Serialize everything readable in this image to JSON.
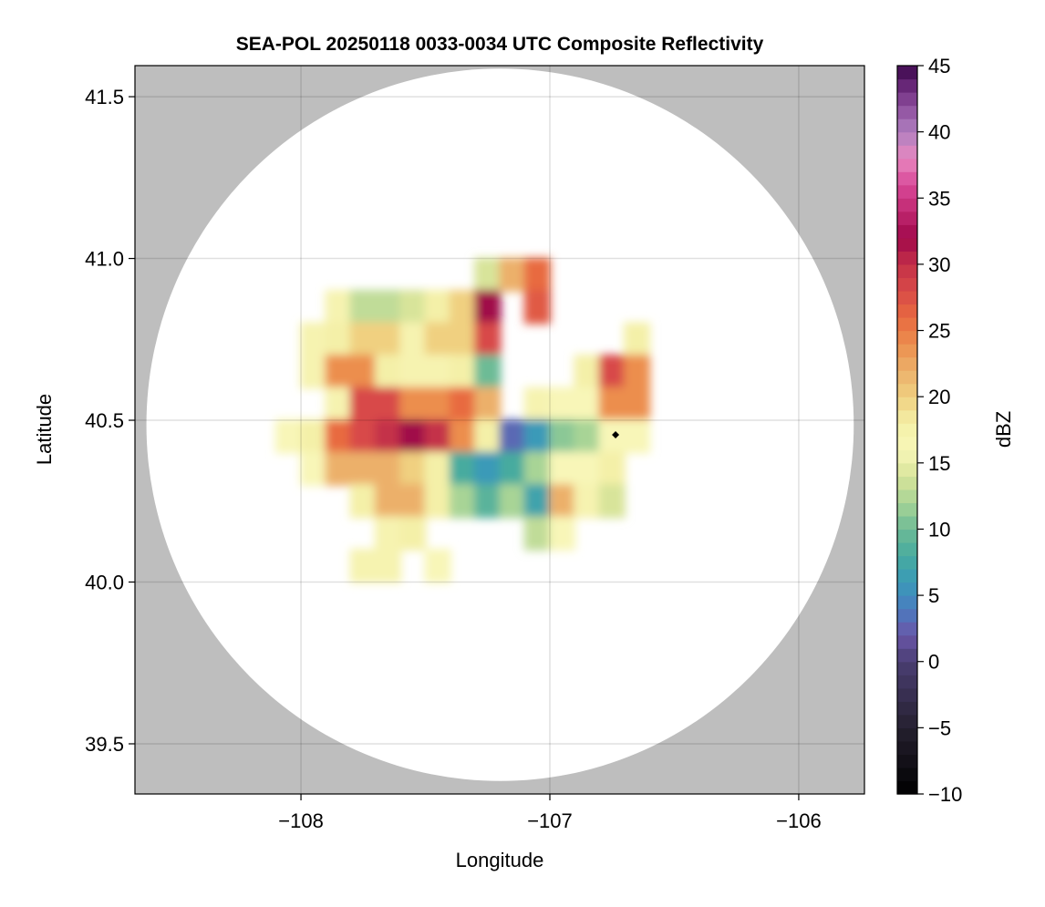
{
  "chart_data": {
    "type": "heatmap",
    "title": "SEA-POL 20250118 0033-0034 UTC Composite Reflectivity",
    "xlabel": "Longitude",
    "ylabel": "Latitude",
    "xlim": [
      -108.667,
      -105.736
    ],
    "ylim": [
      39.345,
      41.596
    ],
    "xticks": [
      -108,
      -107,
      -106
    ],
    "xtick_labels": [
      "−108",
      "−107",
      "−106"
    ],
    "yticks": [
      39.5,
      40.0,
      40.5,
      41.0,
      41.5
    ],
    "ytick_labels": [
      "39.5",
      "40.0",
      "40.5",
      "41.0",
      "41.5"
    ],
    "grid": true,
    "background_color": "#bebebe",
    "radar_coverage": {
      "center_lon": -107.2,
      "center_lat": 40.486,
      "radius_lon_deg": 1.421,
      "radius_lat_deg": 1.101
    },
    "radar_site_marker": {
      "lon": -106.736,
      "lat": 40.455,
      "color": "#000000"
    },
    "grid_cells": {
      "lon_start": -108.3,
      "lat_top": 41.0,
      "step_deg": 0.1,
      "note_units": "dBZ",
      "rows": [
        [
          null,
          null,
          null,
          null,
          null,
          null,
          null,
          null,
          null,
          null,
          14,
          22,
          26,
          null,
          null,
          null,
          null,
          null
        ],
        [
          null,
          null,
          null,
          null,
          17,
          13,
          13,
          14,
          18,
          20,
          32,
          null,
          27,
          null,
          null,
          null,
          null,
          null
        ],
        [
          null,
          null,
          null,
          17,
          18,
          20,
          20,
          17,
          20,
          20,
          28,
          null,
          null,
          null,
          null,
          null,
          18,
          null
        ],
        [
          null,
          null,
          null,
          17,
          24,
          24,
          18,
          17,
          17,
          18,
          10,
          null,
          null,
          null,
          18,
          28,
          24,
          null
        ],
        [
          null,
          null,
          null,
          null,
          17,
          28,
          28,
          24,
          24,
          26,
          22,
          null,
          17,
          16,
          16,
          24,
          24,
          null
        ],
        [
          null,
          null,
          16,
          18,
          26,
          28,
          30,
          32,
          30,
          24,
          18,
          3,
          6,
          11,
          12,
          16,
          16,
          null
        ],
        [
          null,
          null,
          null,
          16,
          22,
          22,
          22,
          20,
          18,
          8,
          6,
          8,
          12,
          16,
          16,
          18,
          null,
          null
        ],
        [
          null,
          null,
          null,
          null,
          null,
          18,
          22,
          22,
          18,
          12,
          9,
          12,
          7,
          22,
          17,
          14,
          null,
          null
        ],
        [
          null,
          null,
          null,
          null,
          null,
          null,
          17,
          18,
          null,
          null,
          null,
          null,
          13,
          16,
          null,
          null,
          null,
          null
        ],
        [
          null,
          null,
          null,
          null,
          null,
          17,
          17,
          null,
          16,
          null,
          null,
          null,
          null,
          null,
          null,
          null,
          null,
          null
        ]
      ]
    },
    "colorbar": {
      "label": "dBZ",
      "range": [
        -10,
        45
      ],
      "step": 1,
      "ticks": [
        -10,
        -5,
        0,
        5,
        10,
        15,
        20,
        25,
        30,
        35,
        40,
        45
      ],
      "tick_labels": [
        "−10",
        "−5",
        "0",
        "5",
        "10",
        "15",
        "20",
        "25",
        "30",
        "35",
        "40",
        "45"
      ],
      "anchors": [
        [
          -10,
          "#000000"
        ],
        [
          -5,
          "#25202f"
        ],
        [
          0,
          "#4a3e72"
        ],
        [
          2,
          "#6a56a8"
        ],
        [
          4,
          "#4a7cc0"
        ],
        [
          6,
          "#3a9ab8"
        ],
        [
          8,
          "#47ab9f"
        ],
        [
          10,
          "#6dbb96"
        ],
        [
          12,
          "#a8d496"
        ],
        [
          14,
          "#d8e49a"
        ],
        [
          16,
          "#f8f6b8"
        ],
        [
          18,
          "#f4f0a8"
        ],
        [
          20,
          "#f0d080"
        ],
        [
          22,
          "#ecb06a"
        ],
        [
          24,
          "#ec8e4e"
        ],
        [
          26,
          "#e86a40"
        ],
        [
          28,
          "#d84a48"
        ],
        [
          30,
          "#c43048"
        ],
        [
          32,
          "#a0084a"
        ],
        [
          34,
          "#c02870"
        ],
        [
          36,
          "#d84898"
        ],
        [
          38,
          "#e888c0"
        ],
        [
          40,
          "#b080c0"
        ],
        [
          42,
          "#8c4c9c"
        ],
        [
          44,
          "#5a1a6a"
        ],
        [
          45,
          "#3a0a4a"
        ]
      ]
    }
  }
}
